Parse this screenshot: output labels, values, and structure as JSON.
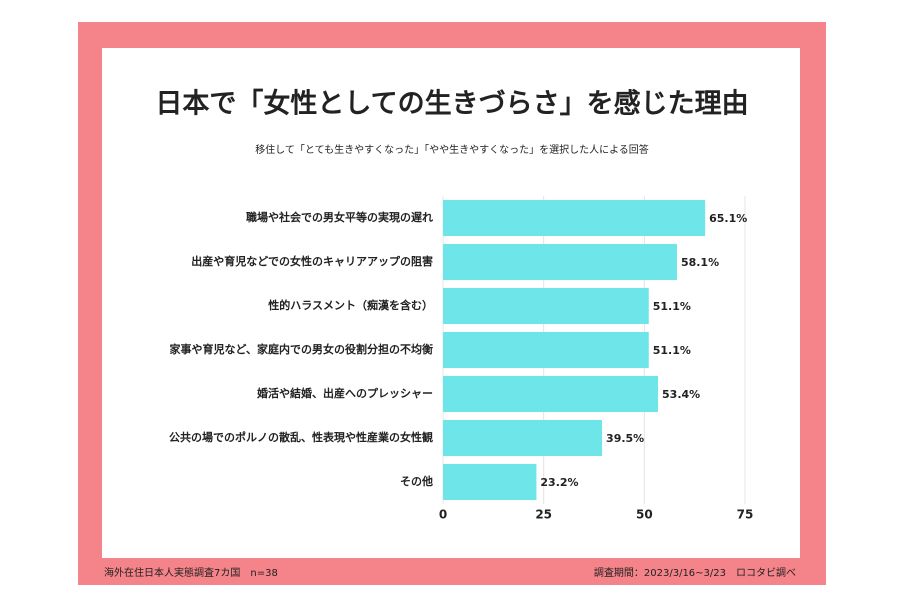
{
  "chart_data": {
    "type": "bar",
    "orientation": "horizontal",
    "title": "日本で「女性としての生きづらさ」を感じた理由",
    "subtitle": "移住して「とても生きやすくなった」「やや生きやすくなった」を選択した人による回答",
    "categories": [
      "職場や社会での男女平等の実現の遅れ",
      "出産や育児などでの女性のキャリアアップの阻害",
      "性的ハラスメント（痴漢を含む）",
      "家事や育児など、家庭内での男女の役割分担の不均衡",
      "婚活や結婚、出産へのプレッシャー",
      "公共の場でのポルノの散乱、性表現や性産業の女性観",
      "その他"
    ],
    "values": [
      65.1,
      58.1,
      51.1,
      51.1,
      53.4,
      39.5,
      23.2
    ],
    "value_labels": [
      "65.1%",
      "58.1%",
      "51.1%",
      "51.1%",
      "53.4%",
      "39.5%",
      "23.2%"
    ],
    "color": "#6ee5e8",
    "xlim": [
      0,
      75
    ],
    "xticks": [
      0,
      25,
      50,
      75
    ],
    "grid": true
  },
  "footer": {
    "survey": "海外在住日本人実態調査7カ国　n=38",
    "period": "調査期間：2023/3/16~3/23　ロコタビ調べ"
  }
}
